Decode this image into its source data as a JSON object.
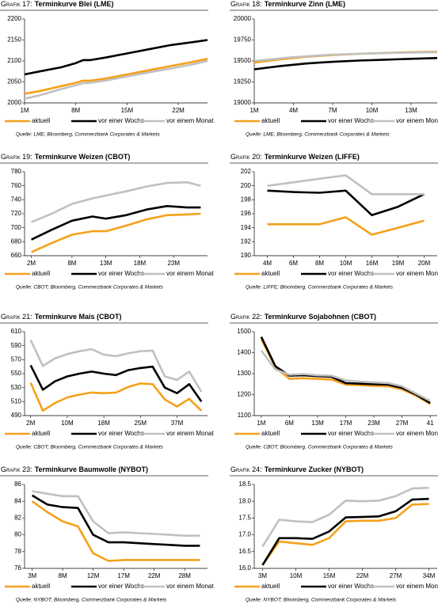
{
  "chart_data": [
    {
      "type": "line",
      "label": "Grafik 17:",
      "title": "Terminkurve Blei (LME)",
      "source": "Quelle: LME; Bloomberg, Commerzbank Corporates & Markets",
      "x": [
        1,
        3,
        6,
        8,
        9,
        10,
        12,
        15,
        18,
        21,
        24,
        26
      ],
      "xlim": [
        1,
        26
      ],
      "xticks": [
        {
          "value": 1,
          "label": "1M"
        },
        {
          "value": 8,
          "label": "8M"
        },
        {
          "value": 15,
          "label": "15M"
        },
        {
          "value": 22,
          "label": "22M"
        }
      ],
      "ylim": [
        2000,
        2200
      ],
      "yticks": [
        2000,
        2050,
        2100,
        2150,
        2200
      ],
      "grid": false,
      "series": [
        {
          "name": "aktuell",
          "color": "#f5a01a",
          "values": [
            2022,
            2028,
            2040,
            2048,
            2053,
            2053,
            2058,
            2068,
            2078,
            2088,
            2098,
            2105
          ]
        },
        {
          "name": "vor einer Woche",
          "color": "#000000",
          "values": [
            2068,
            2075,
            2085,
            2095,
            2102,
            2102,
            2108,
            2118,
            2128,
            2138,
            2145,
            2150
          ]
        },
        {
          "name": "vor einem Monat",
          "color": "#c0c0c0",
          "values": [
            2010,
            2018,
            2033,
            2042,
            2047,
            2048,
            2053,
            2063,
            2073,
            2082,
            2092,
            2100
          ]
        }
      ]
    },
    {
      "type": "line",
      "label": "Grafik 18:",
      "title": "Terminkurve Zinn (LME)",
      "source": "Quelle: LME; Bloomberg, Commerzbank Corporates & Markets",
      "x": [
        1,
        2,
        3,
        4,
        5,
        6,
        7,
        9,
        11,
        13,
        15
      ],
      "xlim": [
        1,
        15
      ],
      "xticks": [
        {
          "value": 1,
          "label": "1M"
        },
        {
          "value": 4,
          "label": "4M"
        },
        {
          "value": 7,
          "label": "7M"
        },
        {
          "value": 10,
          "label": "10M"
        },
        {
          "value": 13,
          "label": "13M"
        }
      ],
      "ylim": [
        19000,
        20000
      ],
      "yticks": [
        19000,
        19250,
        19500,
        19750,
        20000
      ],
      "grid": false,
      "series": [
        {
          "name": "aktuell",
          "color": "#f5a01a",
          "values": [
            19480,
            19500,
            19520,
            19535,
            19550,
            19560,
            19570,
            19585,
            19595,
            19605,
            19610
          ]
        },
        {
          "name": "vor einer Woche",
          "color": "#000000",
          "values": [
            19400,
            19420,
            19440,
            19455,
            19470,
            19480,
            19490,
            19505,
            19515,
            19525,
            19535
          ]
        },
        {
          "name": "vor einem Monat",
          "color": "#c0c0c0",
          "values": [
            19500,
            19515,
            19530,
            19545,
            19555,
            19565,
            19575,
            19585,
            19595,
            19600,
            19605
          ]
        }
      ]
    },
    {
      "type": "line",
      "label": "Grafik 19:",
      "title": "Terminkurve Weizen (CBOT)",
      "source": "Quelle: CBOT; Bloomberg, Commerzbank Corporates & Markets",
      "x": [
        2,
        5,
        8,
        11,
        13,
        16,
        19,
        22,
        25,
        27
      ],
      "xlim": [
        1,
        28
      ],
      "xticks": [
        {
          "value": 2,
          "label": "2M"
        },
        {
          "value": 8,
          "label": "8M"
        },
        {
          "value": 13,
          "label": "13M"
        },
        {
          "value": 18,
          "label": "18M"
        },
        {
          "value": 23,
          "label": "23M"
        }
      ],
      "ylim": [
        660,
        780
      ],
      "yticks": [
        660,
        680,
        700,
        720,
        740,
        760,
        780
      ],
      "grid": false,
      "series": [
        {
          "name": "aktuell",
          "color": "#f5a01a",
          "values": [
            665,
            678,
            690,
            695,
            695,
            703,
            712,
            718,
            719,
            720
          ]
        },
        {
          "name": "vor einer Woche",
          "color": "#000000",
          "values": [
            683,
            697,
            710,
            716,
            713,
            718,
            726,
            731,
            729,
            729
          ]
        },
        {
          "name": "vor einem Monat",
          "color": "#c0c0c0",
          "values": [
            708,
            720,
            734,
            742,
            746,
            752,
            759,
            764,
            765,
            760
          ]
        }
      ]
    },
    {
      "type": "line",
      "label": "Grafik 20:",
      "title": "Terminkurve Weizen (LIFFE)",
      "source": "Quelle: LIFFE; Bloomberg, Commerzbank Corporates & Markets",
      "categories": [
        "4M",
        "6M",
        "8M",
        "10M",
        "16M",
        "19M",
        "20M"
      ],
      "ylim": [
        190,
        202
      ],
      "yticks": [
        190,
        192,
        194,
        196,
        198,
        200,
        202
      ],
      "grid": false,
      "series": [
        {
          "name": "aktuell",
          "color": "#f5a01a",
          "values": [
            194.5,
            194.5,
            194.5,
            195.5,
            193.0,
            194.0,
            195.0
          ]
        },
        {
          "name": "vor einer Woche",
          "color": "#000000",
          "values": [
            199.3,
            199.1,
            199.0,
            199.3,
            195.8,
            197.0,
            198.8
          ]
        },
        {
          "name": "vor einem Monat",
          "color": "#c0c0c0",
          "values": [
            200.0,
            200.5,
            201.0,
            201.5,
            198.8,
            198.8,
            198.8
          ]
        }
      ]
    },
    {
      "type": "line",
      "label": "Grafik 21:",
      "title": "Terminkurve Mais (CBOT)",
      "source": "Quelle: CBOT; Bloomberg, Commerzbank Corporates & Markets",
      "categories": [
        "2M",
        null,
        null,
        "10M",
        null,
        null,
        "18M",
        null,
        null,
        "25M",
        null,
        null,
        "37M",
        null,
        null
      ],
      "ylim": [
        490,
        610
      ],
      "yticks": [
        490,
        510,
        530,
        550,
        570,
        590,
        610
      ],
      "grid": false,
      "series": [
        {
          "name": "aktuell",
          "color": "#f5a01a",
          "values": [
            537,
            497,
            508,
            516,
            520,
            523,
            522,
            523,
            531,
            536,
            535,
            513,
            503,
            514,
            497
          ]
        },
        {
          "name": "vor einer Woche",
          "color": "#000000",
          "values": [
            562,
            527,
            539,
            546,
            550,
            553,
            550,
            548,
            555,
            558,
            560,
            530,
            522,
            535,
            510
          ]
        },
        {
          "name": "vor einem Monat",
          "color": "#c0c0c0",
          "values": [
            598,
            561,
            572,
            578,
            582,
            585,
            577,
            575,
            579,
            582,
            583,
            546,
            541,
            553,
            524
          ]
        }
      ]
    },
    {
      "type": "line",
      "label": "Grafik 22:",
      "title": "Terminkurve Sojabohnen (CBOT)",
      "source": "Quelle: CBOT; Bloomberg, Commerzbank Corporates & Markets",
      "categories": [
        "1M",
        null,
        "6M",
        null,
        "13M",
        null,
        "17M",
        null,
        "23M",
        null,
        "27M",
        null,
        "41"
      ],
      "ylim": [
        1100,
        1500
      ],
      "yticks": [
        1100,
        1200,
        1300,
        1400,
        1500
      ],
      "grid": false,
      "series": [
        {
          "name": "aktuell",
          "color": "#f5a01a",
          "values": [
            1465,
            1330,
            1275,
            1278,
            1275,
            1272,
            1248,
            1245,
            1242,
            1240,
            1225,
            1195,
            1155
          ]
        },
        {
          "name": "vor einer Woche",
          "color": "#000000",
          "values": [
            1475,
            1335,
            1290,
            1292,
            1288,
            1285,
            1255,
            1252,
            1250,
            1248,
            1232,
            1200,
            1160
          ]
        },
        {
          "name": "vor einem Monat",
          "color": "#c0c0c0",
          "values": [
            1410,
            1320,
            1295,
            1298,
            1292,
            1290,
            1268,
            1262,
            1258,
            1255,
            1240,
            1205,
            1170
          ]
        }
      ]
    },
    {
      "type": "line",
      "label": "Grafik 23:",
      "title": "Terminkurve Baumwolle (NYBOT)",
      "source": "Quelle: NYBOT; Bloomberg, Commerzbank Corporates & Markets",
      "categories": [
        "3M",
        null,
        "8M",
        null,
        "12M",
        null,
        "17M",
        null,
        "22M",
        null,
        "28M",
        null
      ],
      "ylim": [
        76,
        86
      ],
      "yticks": [
        76,
        78,
        80,
        82,
        84,
        86
      ],
      "grid": false,
      "series": [
        {
          "name": "aktuell",
          "color": "#f5a01a",
          "values": [
            84.0,
            82.7,
            81.6,
            81.0,
            77.8,
            76.9,
            77.0,
            77.0,
            77.0,
            77.0,
            77.0,
            77.0
          ]
        },
        {
          "name": "vor einer Woche",
          "color": "#000000",
          "values": [
            84.7,
            83.6,
            83.3,
            83.2,
            80.0,
            79.1,
            79.1,
            79.0,
            78.9,
            78.8,
            78.7,
            78.7
          ]
        },
        {
          "name": "vor einem Monat",
          "color": "#c0c0c0",
          "values": [
            85.2,
            84.9,
            84.6,
            84.6,
            81.6,
            80.2,
            80.3,
            80.2,
            80.1,
            80.0,
            79.9,
            79.9
          ]
        }
      ]
    },
    {
      "type": "line",
      "label": "Grafik 24:",
      "title": "Terminkurve Zucker (NYBOT)",
      "source": "Quelle: NYBOT; Bloomberg, Commerzbank Corporates & Markets",
      "categories": [
        "3M",
        null,
        "10M",
        null,
        "15M",
        null,
        "22M",
        null,
        "27M",
        null,
        "34M"
      ],
      "ylim": [
        16.0,
        18.5
      ],
      "yticks": [
        {
          "value": 16,
          "label": "16.0"
        },
        16.5,
        {
          "value": 17,
          "label": "17.0"
        },
        17.5,
        {
          "value": 18,
          "label": "18.0"
        },
        18.5
      ],
      "grid": false,
      "series": [
        {
          "name": "aktuell",
          "color": "#f5a01a",
          "values": [
            16.1,
            16.8,
            16.75,
            16.7,
            16.9,
            17.4,
            17.42,
            17.42,
            17.5,
            17.9,
            17.92
          ]
        },
        {
          "name": "vor einer Woche",
          "color": "#000000",
          "values": [
            16.1,
            16.9,
            16.9,
            16.88,
            17.1,
            17.52,
            17.53,
            17.55,
            17.7,
            18.05,
            18.07
          ]
        },
        {
          "name": "vor einem Monat",
          "color": "#c0c0c0",
          "values": [
            16.65,
            17.45,
            17.4,
            17.38,
            17.6,
            18.02,
            18.0,
            18.02,
            18.15,
            18.38,
            18.4
          ]
        }
      ]
    }
  ]
}
